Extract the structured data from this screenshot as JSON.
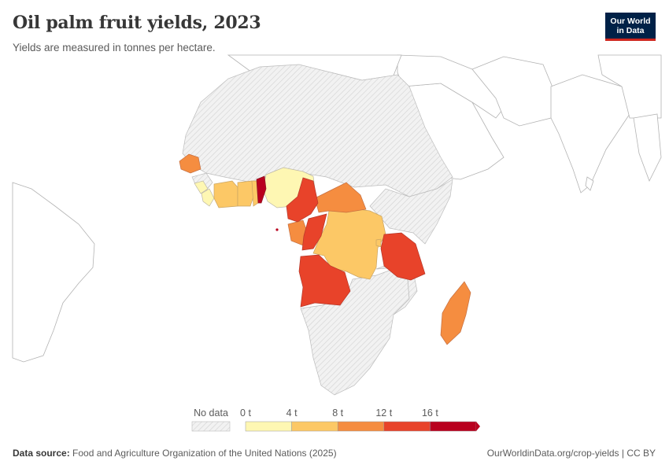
{
  "title": "Oil palm fruit yields, 2023",
  "subtitle": "Yields are measured in tonnes per hectare.",
  "logo": {
    "line1": "Our World",
    "line2": "in Data"
  },
  "legend": {
    "no_data_label": "No data",
    "tick_labels": [
      "0 t",
      "4 t",
      "8 t",
      "12 t",
      "16 t"
    ],
    "bins": [
      {
        "from": 0,
        "to": 4,
        "color": "#fef7b3"
      },
      {
        "from": 4,
        "to": 8,
        "color": "#fcc866"
      },
      {
        "from": 8,
        "to": 12,
        "color": "#f58d40"
      },
      {
        "from": 12,
        "to": 16,
        "color": "#e8432a"
      },
      {
        "from": 16,
        "to": null,
        "color": "#b9001e"
      }
    ]
  },
  "colors": {
    "no_data_fill": "#f2f2f2",
    "no_data_hatch": "#d4d4d4",
    "border": "#bcbcbc",
    "land_outline": "#b3b3b3"
  },
  "footer": {
    "source_label": "Data source:",
    "source_text": "Food and Agriculture Organization of the United Nations (2025)",
    "right_text": "OurWorldinData.org/crop-yields | CC BY"
  }
}
